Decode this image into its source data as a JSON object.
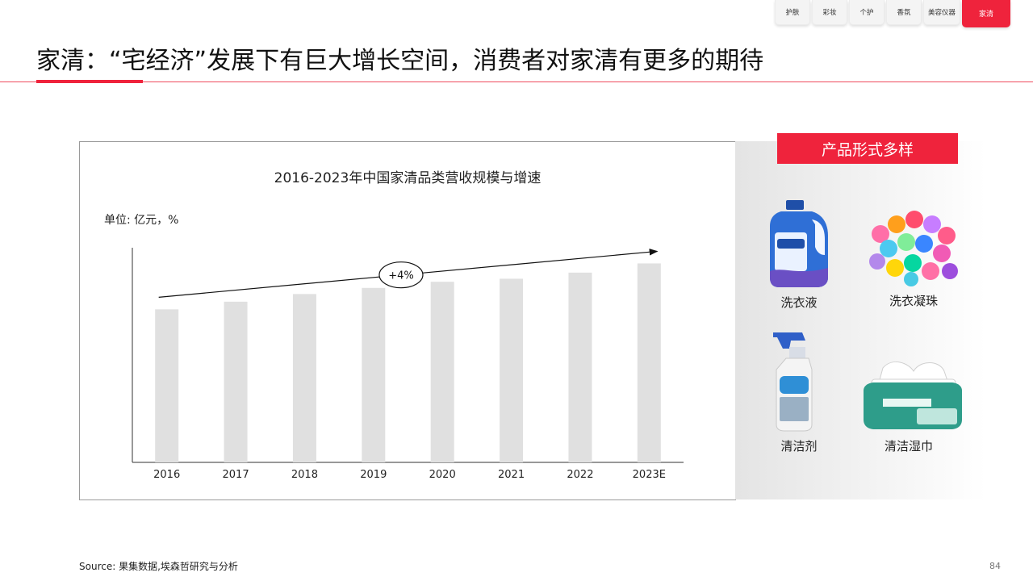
{
  "nav_tabs": [
    {
      "label": "护肤",
      "active": false
    },
    {
      "label": "彩妆",
      "active": false
    },
    {
      "label": "个护",
      "active": false
    },
    {
      "label": "香氛",
      "active": false
    },
    {
      "label": "美容仪器",
      "active": false
    },
    {
      "label": "家清",
      "active": true
    }
  ],
  "page_title": "家清：“宅经济”发展下有巨大增长空间，消费者对家清有更多的期待",
  "chart_data": {
    "type": "bar",
    "title": "2016-2023年中国家清品类营收规模与增速",
    "unit_label": "单位: 亿元，%",
    "categories": [
      "2016",
      "2017",
      "2018",
      "2019",
      "2020",
      "2021",
      "2022",
      "2023E"
    ],
    "values": [
      100,
      105,
      110,
      114,
      118,
      120,
      124,
      130
    ],
    "ylim": [
      0,
      145
    ],
    "growth_annotation": "+4%",
    "bar_color": "#e0e0e0",
    "grid": false
  },
  "products_panel": {
    "heading": "产品形式多样",
    "items": [
      {
        "name": "洗衣液",
        "icon": "laundry-detergent-bottle-icon"
      },
      {
        "name": "洗衣凝珠",
        "icon": "laundry-pods-icon"
      },
      {
        "name": "清洁剂",
        "icon": "spray-cleaner-bottle-icon"
      },
      {
        "name": "清洁湿巾",
        "icon": "wet-wipes-pack-icon"
      }
    ]
  },
  "source": "Source: 果集数据,埃森哲研究与分析",
  "page_number": "84",
  "colors": {
    "accent": "#ef233c",
    "bar": "#e0e0e0"
  }
}
